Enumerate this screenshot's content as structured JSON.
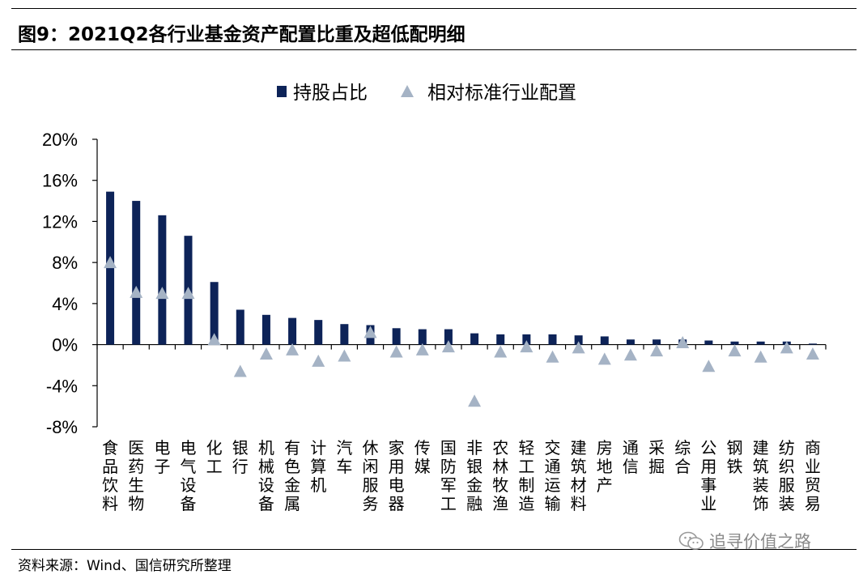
{
  "header": {
    "title": "图9：2021Q2各行业基金资产配置比重及超低配明细"
  },
  "footer": {
    "source": "资料来源：Wind、国信研究所整理",
    "watermark_text": "追寻价值之路",
    "watermark_icon": "wechat-icon"
  },
  "colors": {
    "bar": "#0d2358",
    "triangle": "#a5b3c5",
    "axis": "#000000"
  },
  "chart_data": {
    "type": "bar",
    "legend": {
      "position": "top-center",
      "entries": [
        "持股占比",
        "相对标准行业配置"
      ]
    },
    "ylim": [
      -8,
      20
    ],
    "y_ticks": [
      "20%",
      "16%",
      "12%",
      "8%",
      "4%",
      "0%",
      "-4%",
      "-8%"
    ],
    "y_tick_values": [
      20,
      16,
      12,
      8,
      4,
      0,
      -4,
      -8
    ],
    "grid": false,
    "categories": [
      "食品饮料",
      "医药生物",
      "电子",
      "电气设备",
      "化工",
      "银行",
      "机械设备",
      "有色金属",
      "计算机",
      "汽车",
      "休闲服务",
      "家用电器",
      "传媒",
      "国防军工",
      "非银金融",
      "农林牧渔",
      "轻工制造",
      "交通运输",
      "建筑材料",
      "房地产",
      "通信",
      "采掘",
      "综合",
      "公用事业",
      "钢铁",
      "建筑装饰",
      "纺织服装",
      "商业贸易"
    ],
    "series": [
      {
        "name": "持股占比",
        "marker": "bar",
        "values": [
          14.9,
          14.0,
          12.6,
          10.6,
          6.1,
          3.4,
          2.9,
          2.6,
          2.4,
          2.0,
          1.9,
          1.6,
          1.5,
          1.5,
          1.1,
          1.0,
          1.0,
          1.0,
          0.9,
          0.8,
          0.5,
          0.5,
          0.5,
          0.4,
          0.3,
          0.3,
          0.3,
          0.1
        ]
      },
      {
        "name": "相对标准行业配置",
        "marker": "triangle",
        "values": [
          8.0,
          5.1,
          5.0,
          5.0,
          0.5,
          -2.6,
          -0.9,
          -0.5,
          -1.6,
          -1.1,
          1.2,
          -0.7,
          -0.5,
          -0.2,
          -5.5,
          -0.7,
          -0.2,
          -1.2,
          -0.3,
          -1.4,
          -1.0,
          -0.6,
          0.2,
          -2.1,
          -0.6,
          -1.2,
          -0.3,
          -0.9
        ]
      }
    ]
  }
}
